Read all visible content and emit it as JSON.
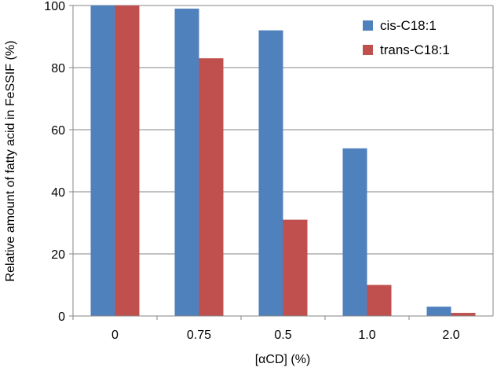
{
  "chart_data": {
    "type": "bar",
    "title": "",
    "xlabel": "[αCD] (%)",
    "ylabel": "Relative amount of fatty acid in FeSSIF (%)",
    "categories": [
      "0",
      "0.75",
      "0.5",
      "1.0",
      "2.0"
    ],
    "ylim": [
      0,
      100
    ],
    "yticks": [
      0,
      20,
      40,
      60,
      80,
      100
    ],
    "grid": true,
    "legend_position": "top-right",
    "series": [
      {
        "name": "cis-C18:1",
        "color": "#4f81bd",
        "values": [
          100,
          99,
          92,
          54,
          3
        ]
      },
      {
        "name": "trans-C18:1",
        "color": "#c0504d",
        "values": [
          100,
          83,
          31,
          10,
          1
        ]
      }
    ]
  }
}
